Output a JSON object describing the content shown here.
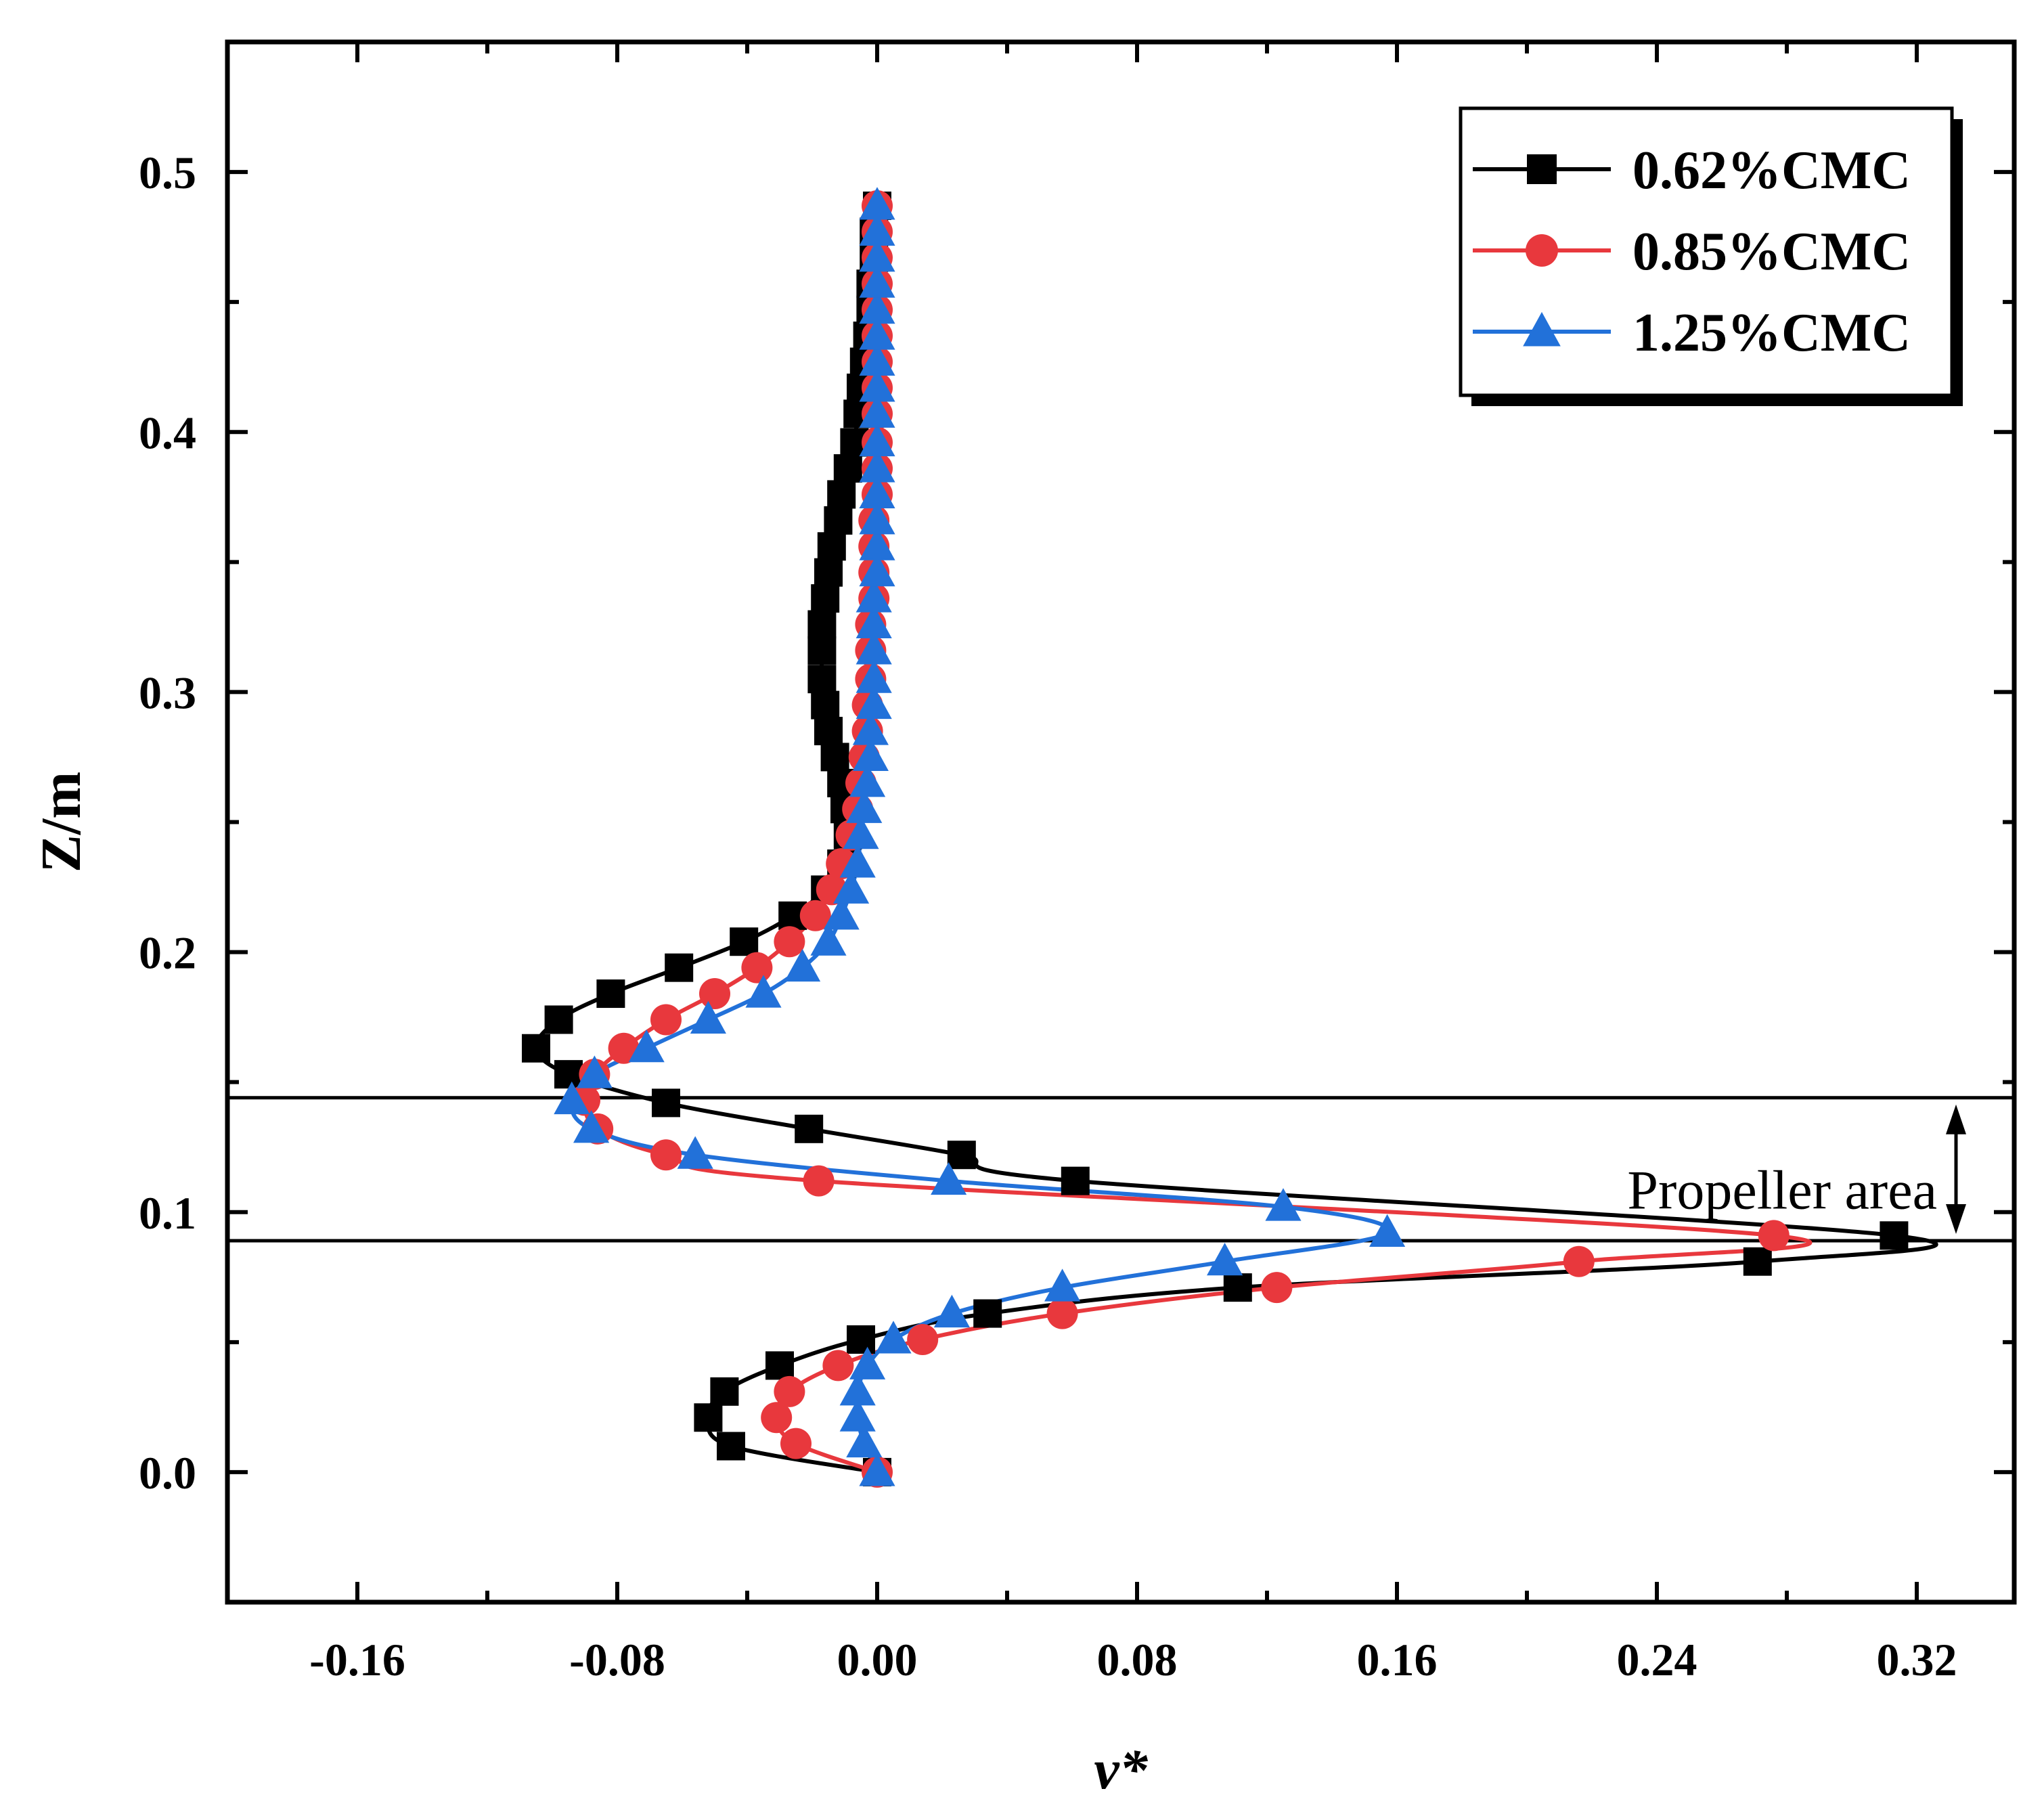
{
  "chart_data": {
    "type": "line",
    "xlabel": "ν*",
    "ylabel": "Z/m",
    "xlim": [
      -0.2,
      0.35
    ],
    "ylim": [
      -0.05,
      0.55
    ],
    "xticks": [
      -0.16,
      -0.08,
      0.0,
      0.08,
      0.16,
      0.24,
      0.32
    ],
    "xtick_labels": [
      "-0.16",
      "-0.08",
      "0.00",
      "0.08",
      "0.16",
      "0.24",
      "0.32"
    ],
    "yticks": [
      0.0,
      0.1,
      0.2,
      0.3,
      0.4,
      0.5
    ],
    "ytick_labels": [
      "0.0",
      "0.1",
      "0.2",
      "0.3",
      "0.4",
      "0.5"
    ],
    "legend_position": "top-right",
    "annotation": {
      "text": "Propeller area",
      "z_lower": 0.089,
      "z_upper": 0.144
    },
    "series": [
      {
        "name": "0.62%CMC",
        "color": "#000000",
        "marker": "square",
        "points": [
          [
            0.0,
            0.0
          ],
          [
            -0.045,
            0.01
          ],
          [
            -0.052,
            0.021
          ],
          [
            -0.047,
            0.031
          ],
          [
            -0.03,
            0.041
          ],
          [
            -0.005,
            0.051
          ],
          [
            0.034,
            0.061
          ],
          [
            0.111,
            0.071
          ],
          [
            0.271,
            0.081
          ],
          [
            0.313,
            0.091
          ],
          [
            0.061,
            0.112
          ],
          [
            0.026,
            0.122
          ],
          [
            -0.021,
            0.132
          ],
          [
            -0.065,
            0.142
          ],
          [
            -0.095,
            0.153
          ],
          [
            -0.105,
            0.163
          ],
          [
            -0.098,
            0.174
          ],
          [
            -0.082,
            0.184
          ],
          [
            -0.061,
            0.194
          ],
          [
            -0.041,
            0.204
          ],
          [
            -0.026,
            0.214
          ],
          [
            -0.016,
            0.224
          ],
          [
            -0.011,
            0.234
          ],
          [
            -0.009,
            0.245
          ],
          [
            -0.01,
            0.255
          ],
          [
            -0.011,
            0.265
          ],
          [
            -0.013,
            0.275
          ],
          [
            -0.015,
            0.285
          ],
          [
            -0.016,
            0.295
          ],
          [
            -0.017,
            0.305
          ],
          [
            -0.017,
            0.316
          ],
          [
            -0.017,
            0.326
          ],
          [
            -0.016,
            0.336
          ],
          [
            -0.015,
            0.346
          ],
          [
            -0.014,
            0.356
          ],
          [
            -0.012,
            0.366
          ],
          [
            -0.011,
            0.376
          ],
          [
            -0.009,
            0.386
          ],
          [
            -0.007,
            0.396
          ],
          [
            -0.006,
            0.407
          ],
          [
            -0.005,
            0.417
          ],
          [
            -0.004,
            0.427
          ],
          [
            -0.003,
            0.437
          ],
          [
            -0.002,
            0.447
          ],
          [
            -0.002,
            0.457
          ],
          [
            -0.001,
            0.467
          ],
          [
            -0.001,
            0.477
          ],
          [
            0.0,
            0.487
          ]
        ]
      },
      {
        "name": "0.85%CMC",
        "color": "#e8383d",
        "marker": "circle",
        "points": [
          [
            0.0,
            0.0
          ],
          [
            -0.025,
            0.011
          ],
          [
            -0.031,
            0.021
          ],
          [
            -0.027,
            0.031
          ],
          [
            -0.012,
            0.041
          ],
          [
            0.014,
            0.051
          ],
          [
            0.057,
            0.061
          ],
          [
            0.123,
            0.071
          ],
          [
            0.216,
            0.081
          ],
          [
            0.276,
            0.091
          ],
          [
            -0.018,
            0.112
          ],
          [
            -0.065,
            0.122
          ],
          [
            -0.086,
            0.132
          ],
          [
            -0.09,
            0.143
          ],
          [
            -0.087,
            0.153
          ],
          [
            -0.078,
            0.163
          ],
          [
            -0.065,
            0.174
          ],
          [
            -0.05,
            0.184
          ],
          [
            -0.037,
            0.194
          ],
          [
            -0.027,
            0.204
          ],
          [
            -0.019,
            0.214
          ],
          [
            -0.014,
            0.224
          ],
          [
            -0.011,
            0.234
          ],
          [
            -0.008,
            0.245
          ],
          [
            -0.006,
            0.255
          ],
          [
            -0.005,
            0.265
          ],
          [
            -0.004,
            0.275
          ],
          [
            -0.003,
            0.285
          ],
          [
            -0.003,
            0.295
          ],
          [
            -0.002,
            0.305
          ],
          [
            -0.002,
            0.316
          ],
          [
            -0.002,
            0.326
          ],
          [
            -0.001,
            0.336
          ],
          [
            -0.001,
            0.346
          ],
          [
            -0.001,
            0.356
          ],
          [
            -0.001,
            0.366
          ],
          [
            0.0,
            0.376
          ],
          [
            0.0,
            0.386
          ],
          [
            0.0,
            0.396
          ],
          [
            0.0,
            0.407
          ],
          [
            0.0,
            0.417
          ],
          [
            0.0,
            0.427
          ],
          [
            0.0,
            0.437
          ],
          [
            0.0,
            0.447
          ],
          [
            0.0,
            0.457
          ],
          [
            0.0,
            0.467
          ],
          [
            0.0,
            0.477
          ],
          [
            0.0,
            0.487
          ]
        ]
      },
      {
        "name": "1.25%CMC",
        "color": "#2271d9",
        "marker": "triangle",
        "points": [
          [
            0.0,
            0.0
          ],
          [
            -0.004,
            0.011
          ],
          [
            -0.006,
            0.021
          ],
          [
            -0.006,
            0.031
          ],
          [
            -0.003,
            0.041
          ],
          [
            0.005,
            0.051
          ],
          [
            0.023,
            0.061
          ],
          [
            0.057,
            0.071
          ],
          [
            0.107,
            0.081
          ],
          [
            0.157,
            0.092
          ],
          [
            0.125,
            0.102
          ],
          [
            0.022,
            0.112
          ],
          [
            -0.056,
            0.122
          ],
          [
            -0.088,
            0.132
          ],
          [
            -0.094,
            0.143
          ],
          [
            -0.087,
            0.153
          ],
          [
            -0.071,
            0.163
          ],
          [
            -0.052,
            0.174
          ],
          [
            -0.035,
            0.184
          ],
          [
            -0.023,
            0.194
          ],
          [
            -0.015,
            0.204
          ],
          [
            -0.011,
            0.214
          ],
          [
            -0.008,
            0.224
          ],
          [
            -0.006,
            0.234
          ],
          [
            -0.005,
            0.245
          ],
          [
            -0.004,
            0.255
          ],
          [
            -0.003,
            0.265
          ],
          [
            -0.002,
            0.275
          ],
          [
            -0.002,
            0.285
          ],
          [
            -0.001,
            0.295
          ],
          [
            -0.001,
            0.305
          ],
          [
            -0.001,
            0.316
          ],
          [
            -0.001,
            0.326
          ],
          [
            -0.001,
            0.336
          ],
          [
            0.0,
            0.346
          ],
          [
            0.0,
            0.356
          ],
          [
            0.0,
            0.366
          ],
          [
            0.0,
            0.376
          ],
          [
            0.0,
            0.386
          ],
          [
            0.0,
            0.396
          ],
          [
            0.0,
            0.407
          ],
          [
            0.0,
            0.417
          ],
          [
            0.0,
            0.427
          ],
          [
            0.0,
            0.437
          ],
          [
            0.0,
            0.447
          ],
          [
            0.0,
            0.457
          ],
          [
            0.0,
            0.467
          ],
          [
            0.0,
            0.477
          ],
          [
            0.0,
            0.487
          ]
        ]
      }
    ]
  }
}
